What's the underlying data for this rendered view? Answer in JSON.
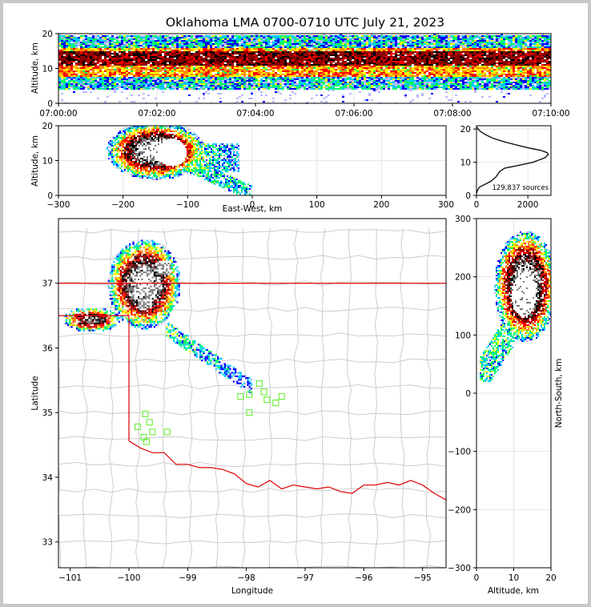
{
  "title": "Oklahoma LMA 0700-0710 UTC July 21, 2023",
  "colors": {
    "scale": [
      "#b8b8ff",
      "#0000ff",
      "#00c8ff",
      "#00ff64",
      "#ffff00",
      "#ff8c00",
      "#ff0000",
      "#8b0000",
      "#000000",
      "#7a7a7a",
      "#ffffff"
    ],
    "state_border": "#e00000",
    "county_lines": "#c8c8c8",
    "stations": "#66ee33"
  },
  "chart_data": [
    {
      "type": "heatmap",
      "name": "time-height",
      "ylabel": "Altitude, km",
      "xlim": [
        "07:00:00",
        "07:10:00"
      ],
      "ylim": [
        0,
        20
      ],
      "x_ticks": [
        "07:00:00",
        "07:02:00",
        "07:04:00",
        "07:06:00",
        "07:08:00",
        "07:10:00"
      ],
      "y_ticks": [
        "0",
        "10",
        "20"
      ],
      "core_altitude_km": [
        8,
        16
      ]
    },
    {
      "type": "heatmap",
      "name": "east-west-height",
      "xlabel": "East-West, km",
      "ylabel": "Altitude, km",
      "xlim": [
        -300,
        300
      ],
      "ylim": [
        0,
        20
      ],
      "x_ticks": [
        "−300",
        "−200",
        "−100",
        "0",
        "100",
        "200",
        "300"
      ],
      "y_ticks": [
        "0",
        "10",
        "20"
      ]
    },
    {
      "type": "line",
      "name": "altitude-histogram",
      "xlim": [
        0,
        2900
      ],
      "ylim": [
        0,
        21
      ],
      "x_ticks": [
        "0",
        "2000"
      ],
      "y_ticks": [
        "0",
        "10",
        "20"
      ],
      "annotation": "129,837 sources",
      "points": [
        [
          0,
          0.5
        ],
        [
          30,
          1.5
        ],
        [
          120,
          2.5
        ],
        [
          300,
          3.2
        ],
        [
          550,
          4.2
        ],
        [
          750,
          5.5
        ],
        [
          900,
          7.2
        ],
        [
          1100,
          8.2
        ],
        [
          1600,
          9.0
        ],
        [
          2200,
          10.0
        ],
        [
          2650,
          11.3
        ],
        [
          2800,
          12.3
        ],
        [
          2750,
          12.9
        ],
        [
          2500,
          13.6
        ],
        [
          2100,
          14.2
        ],
        [
          1600,
          15.1
        ],
        [
          1100,
          16.1
        ],
        [
          650,
          17.2
        ],
        [
          350,
          18.3
        ],
        [
          150,
          19.3
        ],
        [
          60,
          20.0
        ],
        [
          20,
          20.6
        ]
      ]
    },
    {
      "type": "heatmap",
      "name": "plan-view",
      "xlabel": "Longitude",
      "ylabel": "Latitude",
      "xlim": [
        -101.2,
        -94.6
      ],
      "ylim": [
        32.6,
        38.0
      ],
      "x_ticks": [
        "−101",
        "−100",
        "−99",
        "−98",
        "−97",
        "−96",
        "−95"
      ],
      "y_ticks": [
        "33",
        "34",
        "35",
        "36",
        "37"
      ],
      "stations": [
        [
          -99.85,
          34.78
        ],
        [
          -99.72,
          34.98
        ],
        [
          -99.65,
          34.85
        ],
        [
          -99.6,
          34.7
        ],
        [
          -99.75,
          34.62
        ],
        [
          -99.7,
          34.55
        ],
        [
          -99.35,
          34.7
        ],
        [
          -98.1,
          35.25
        ],
        [
          -97.95,
          35.28
        ],
        [
          -97.78,
          35.45
        ],
        [
          -97.7,
          35.32
        ],
        [
          -97.65,
          35.2
        ],
        [
          -97.5,
          35.15
        ],
        [
          -97.4,
          35.25
        ],
        [
          -97.95,
          35.0
        ]
      ]
    },
    {
      "type": "heatmap",
      "name": "north-south-height",
      "xlabel": "Altitude, km",
      "ylabel": "North-South, km",
      "xlim": [
        0,
        20
      ],
      "ylim": [
        -300,
        300
      ],
      "x_ticks": [
        "0",
        "10",
        "20"
      ],
      "y_ticks": [
        "−300",
        "−200",
        "−100",
        "0",
        "100",
        "200",
        "300"
      ]
    }
  ]
}
